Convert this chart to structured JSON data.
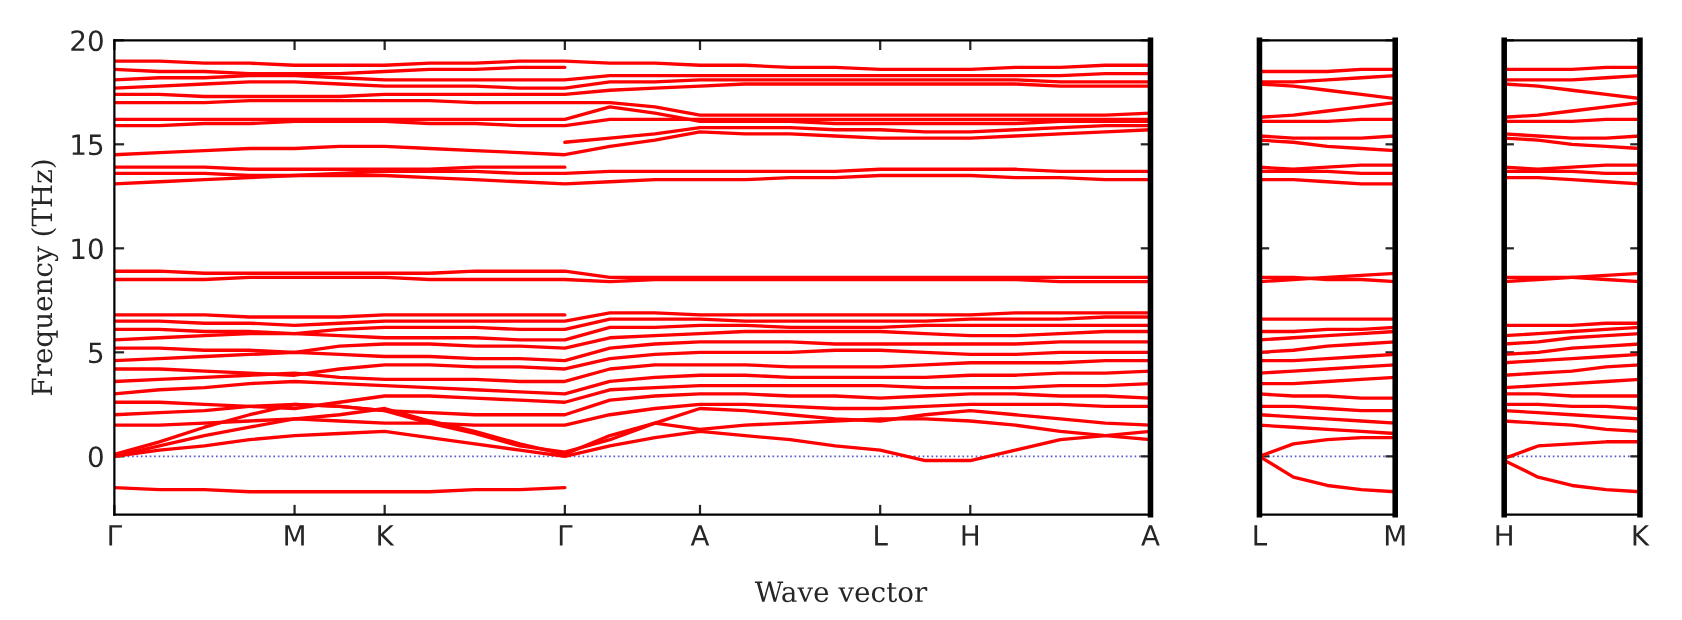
{
  "chart_data": [
    {
      "type": "line",
      "ylabel": "Frequency (THz)",
      "xlabel": "Wave vector",
      "ylim": [
        -2.8,
        20
      ],
      "categories": [
        "Γ",
        null,
        null,
        null,
        "M",
        null,
        "K",
        null,
        null,
        null,
        "Γ",
        null,
        null,
        "A",
        null,
        null,
        null,
        "L",
        null,
        "H",
        null,
        null,
        null,
        "A"
      ],
      "yticks": [
        0,
        5,
        10,
        15,
        20
      ],
      "grid": false,
      "legend": false,
      "marker": "none",
      "line_style": "solid",
      "ref_lines": [
        {
          "axis": "y",
          "value": 0,
          "color": "#5a5ad0",
          "line_style": "dotted"
        }
      ],
      "series": [
        {
          "color": "#ff0000",
          "values": [
            -1.5,
            -1.6,
            -1.6,
            -1.7,
            -1.7,
            -1.7,
            -1.7,
            -1.7,
            -1.6,
            -1.6,
            -1.5,
            null,
            null,
            null,
            null,
            null,
            null,
            null,
            null,
            null,
            null,
            null,
            null,
            null
          ]
        },
        {
          "color": "#ff0000",
          "values": [
            0,
            0.3,
            0.5,
            0.8,
            1.0,
            1.1,
            1.2,
            0.9,
            0.6,
            0.3,
            0,
            0.5,
            0.9,
            1.2,
            1.0,
            0.8,
            0.5,
            0.3,
            -0.2,
            -0.2,
            0.3,
            0.8,
            1.0,
            1.2
          ]
        },
        {
          "color": "#ff0000",
          "values": [
            0,
            0.5,
            1.0,
            1.4,
            1.8,
            2.0,
            2.3,
            1.7,
            1.2,
            0.6,
            0.1,
            1.0,
            1.6,
            1.3,
            1.5,
            1.6,
            1.7,
            1.8,
            1.8,
            1.7,
            1.5,
            1.2,
            1.0,
            0.8
          ]
        },
        {
          "color": "#ff0000",
          "values": [
            0.1,
            0.7,
            1.4,
            2.0,
            2.5,
            2.4,
            2.2,
            1.6,
            1.1,
            0.5,
            0.2,
            0.8,
            1.6,
            2.3,
            2.2,
            2.0,
            1.8,
            1.7,
            2.0,
            2.2,
            2.0,
            1.8,
            1.6,
            1.5
          ]
        },
        {
          "color": "#ff0000",
          "values": [
            1.5,
            1.5,
            1.6,
            1.7,
            1.8,
            1.7,
            1.6,
            1.6,
            1.5,
            1.5,
            1.5,
            2.0,
            2.3,
            2.5,
            2.5,
            2.4,
            2.3,
            2.3,
            2.4,
            2.5,
            2.5,
            2.5,
            2.4,
            2.4
          ]
        },
        {
          "color": "#ff0000",
          "values": [
            2.0,
            2.1,
            2.2,
            2.4,
            2.5,
            2.4,
            2.2,
            2.1,
            2.0,
            2.0,
            2.0,
            2.7,
            2.9,
            3.0,
            3.0,
            2.9,
            2.9,
            2.8,
            2.9,
            3.0,
            3.0,
            2.9,
            2.9,
            2.8
          ]
        },
        {
          "color": "#ff0000",
          "values": [
            2.6,
            2.6,
            2.5,
            2.4,
            2.3,
            2.6,
            2.9,
            2.9,
            2.8,
            2.7,
            2.6,
            3.2,
            3.3,
            3.4,
            3.4,
            3.4,
            3.4,
            3.4,
            3.3,
            3.3,
            3.3,
            3.4,
            3.4,
            3.5
          ]
        },
        {
          "color": "#ff0000",
          "values": [
            3.0,
            3.2,
            3.3,
            3.5,
            3.6,
            3.5,
            3.4,
            3.3,
            3.2,
            3.1,
            3.0,
            3.6,
            3.8,
            3.9,
            3.9,
            3.8,
            3.8,
            3.8,
            3.8,
            3.9,
            3.9,
            4.0,
            4.0,
            4.1
          ]
        },
        {
          "color": "#ff0000",
          "values": [
            3.6,
            3.7,
            3.8,
            3.9,
            4.0,
            3.8,
            3.7,
            3.7,
            3.7,
            3.6,
            3.6,
            4.2,
            4.4,
            4.4,
            4.4,
            4.3,
            4.3,
            4.3,
            4.4,
            4.5,
            4.5,
            4.5,
            4.6,
            4.6
          ]
        },
        {
          "color": "#ff0000",
          "values": [
            4.2,
            4.2,
            4.1,
            4.0,
            3.9,
            4.2,
            4.4,
            4.4,
            4.3,
            4.3,
            4.2,
            4.7,
            4.9,
            5.0,
            5.0,
            5.0,
            5.1,
            5.1,
            5.0,
            4.9,
            4.9,
            5.0,
            5.0,
            5.0
          ]
        },
        {
          "color": "#ff0000",
          "values": [
            4.6,
            4.7,
            4.8,
            4.9,
            5.0,
            4.9,
            4.8,
            4.8,
            4.7,
            4.7,
            4.6,
            5.2,
            5.4,
            5.5,
            5.5,
            5.5,
            5.4,
            5.4,
            5.4,
            5.4,
            5.4,
            5.5,
            5.5,
            5.5
          ]
        },
        {
          "color": "#ff0000",
          "values": [
            5.2,
            5.2,
            5.1,
            5.1,
            5.0,
            5.3,
            5.4,
            5.4,
            5.3,
            5.3,
            5.2,
            5.7,
            5.8,
            5.9,
            6.0,
            6.0,
            6.0,
            6.0,
            5.9,
            5.8,
            5.8,
            5.9,
            6.0,
            6.0
          ]
        },
        {
          "color": "#ff0000",
          "values": [
            5.6,
            5.7,
            5.8,
            5.9,
            5.9,
            5.8,
            5.7,
            5.7,
            5.7,
            5.6,
            5.6,
            6.2,
            6.2,
            6.3,
            6.3,
            6.2,
            6.2,
            6.2,
            6.3,
            6.3,
            6.3,
            6.3,
            6.3,
            6.3
          ]
        },
        {
          "color": "#ff0000",
          "values": [
            6.1,
            6.1,
            6.0,
            6.0,
            5.9,
            6.1,
            6.2,
            6.2,
            6.2,
            6.1,
            6.1,
            6.6,
            6.6,
            6.6,
            6.5,
            6.5,
            6.5,
            6.5,
            6.5,
            6.6,
            6.6,
            6.6,
            6.7,
            6.7
          ]
        },
        {
          "color": "#ff0000",
          "values": [
            6.5,
            6.5,
            6.4,
            6.4,
            6.3,
            6.4,
            6.5,
            6.5,
            6.5,
            6.5,
            6.5,
            6.9,
            6.9,
            6.8,
            6.8,
            6.8,
            6.8,
            6.8,
            6.8,
            6.8,
            6.9,
            6.9,
            6.9,
            6.9
          ]
        },
        {
          "color": "#ff0000",
          "values": [
            6.8,
            6.8,
            6.8,
            6.7,
            6.7,
            6.7,
            6.8,
            6.8,
            6.8,
            6.8,
            6.8,
            null,
            null,
            null,
            null,
            null,
            null,
            null,
            null,
            null,
            null,
            null,
            null,
            null
          ]
        },
        {
          "color": "#ff0000",
          "values": [
            8.5,
            8.5,
            8.5,
            8.6,
            8.6,
            8.6,
            8.6,
            8.5,
            8.5,
            8.5,
            8.5,
            8.4,
            8.5,
            8.5,
            8.5,
            8.5,
            8.5,
            8.5,
            8.5,
            8.5,
            8.5,
            8.4,
            8.4,
            8.4
          ]
        },
        {
          "color": "#ff0000",
          "values": [
            8.9,
            8.9,
            8.8,
            8.8,
            8.8,
            8.8,
            8.8,
            8.8,
            8.9,
            8.9,
            8.9,
            8.6,
            8.6,
            8.6,
            8.6,
            8.6,
            8.6,
            8.6,
            8.6,
            8.6,
            8.6,
            8.6,
            8.6,
            8.6
          ]
        },
        {
          "color": "#ff0000",
          "values": [
            13.1,
            13.2,
            13.3,
            13.4,
            13.5,
            13.5,
            13.5,
            13.4,
            13.3,
            13.2,
            13.1,
            13.2,
            13.3,
            13.3,
            13.3,
            13.4,
            13.4,
            13.5,
            13.5,
            13.5,
            13.4,
            13.4,
            13.3,
            13.3
          ]
        },
        {
          "color": "#ff0000",
          "values": [
            13.6,
            13.6,
            13.6,
            13.5,
            13.5,
            13.6,
            13.7,
            13.7,
            13.7,
            13.6,
            13.6,
            13.7,
            13.7,
            13.7,
            13.7,
            13.7,
            13.7,
            13.8,
            13.8,
            13.8,
            13.8,
            13.7,
            13.7,
            13.7
          ]
        },
        {
          "color": "#ff0000",
          "values": [
            13.9,
            13.9,
            13.9,
            13.8,
            13.8,
            13.8,
            13.8,
            13.8,
            13.9,
            13.9,
            13.9,
            null,
            null,
            null,
            null,
            null,
            null,
            null,
            null,
            null,
            null,
            null,
            null,
            null
          ]
        },
        {
          "color": "#ff0000",
          "values": [
            14.5,
            14.6,
            14.7,
            14.8,
            14.8,
            14.9,
            14.9,
            14.8,
            14.7,
            14.6,
            14.5,
            14.9,
            15.2,
            15.6,
            15.5,
            15.5,
            15.4,
            15.3,
            15.3,
            15.3,
            15.4,
            15.5,
            15.6,
            15.7
          ]
        },
        {
          "color": "#ff0000",
          "values": [
            null,
            null,
            null,
            null,
            null,
            null,
            null,
            null,
            null,
            null,
            15.1,
            15.3,
            15.5,
            15.8,
            15.8,
            15.8,
            15.7,
            15.7,
            15.6,
            15.6,
            15.7,
            15.8,
            15.9,
            15.9
          ]
        },
        {
          "color": "#ff0000",
          "values": [
            15.9,
            15.9,
            16.0,
            16.0,
            16.1,
            16.1,
            16.1,
            16.0,
            16.0,
            15.9,
            15.9,
            16.2,
            16.2,
            16.2,
            16.2,
            16.2,
            16.2,
            16.2,
            16.2,
            16.2,
            16.2,
            16.2,
            16.2,
            16.2
          ]
        },
        {
          "color": "#ff0000",
          "values": [
            16.2,
            16.2,
            16.2,
            16.2,
            16.2,
            16.2,
            16.2,
            16.2,
            16.2,
            16.2,
            16.2,
            16.8,
            16.5,
            16.1,
            16.1,
            16.1,
            16.0,
            16.0,
            16.0,
            16.0,
            16.0,
            16.1,
            16.1,
            16.1
          ]
        },
        {
          "color": "#ff0000",
          "values": [
            17.0,
            17.0,
            17.0,
            17.1,
            17.1,
            17.1,
            17.1,
            17.1,
            17.0,
            17.0,
            17.0,
            17.0,
            16.8,
            16.4,
            16.4,
            16.4,
            16.4,
            16.4,
            16.4,
            16.4,
            16.4,
            16.4,
            16.4,
            16.5
          ]
        },
        {
          "color": "#ff0000",
          "values": [
            17.4,
            17.4,
            17.3,
            17.3,
            17.3,
            17.3,
            17.4,
            17.4,
            17.4,
            17.4,
            17.4,
            17.6,
            17.7,
            17.8,
            17.9,
            17.9,
            17.9,
            17.9,
            17.9,
            17.9,
            17.9,
            17.8,
            17.8,
            17.8
          ]
        },
        {
          "color": "#ff0000",
          "values": [
            17.7,
            17.8,
            17.9,
            18.0,
            18.0,
            17.9,
            17.8,
            17.8,
            17.8,
            17.7,
            17.7,
            18.0,
            18.0,
            18.1,
            18.1,
            18.1,
            18.1,
            18.1,
            18.1,
            18.1,
            18.1,
            18.0,
            18.0,
            18.0
          ]
        },
        {
          "color": "#ff0000",
          "values": [
            18.1,
            18.2,
            18.2,
            18.3,
            18.3,
            18.2,
            18.1,
            18.1,
            18.1,
            18.1,
            18.1,
            18.3,
            18.3,
            18.3,
            18.3,
            18.3,
            18.3,
            18.3,
            18.3,
            18.3,
            18.3,
            18.3,
            18.4,
            18.4
          ]
        },
        {
          "color": "#ff0000",
          "values": [
            18.6,
            18.5,
            18.5,
            18.4,
            18.4,
            18.4,
            18.5,
            18.6,
            18.6,
            18.7,
            18.7,
            null,
            null,
            null,
            null,
            null,
            null,
            null,
            null,
            null,
            null,
            null,
            null,
            null
          ]
        },
        {
          "color": "#ff0000",
          "values": [
            19.0,
            19.0,
            18.9,
            18.9,
            18.8,
            18.8,
            18.8,
            18.9,
            18.9,
            19.0,
            19.0,
            18.9,
            18.9,
            18.8,
            18.8,
            18.7,
            18.7,
            18.6,
            18.6,
            18.6,
            18.7,
            18.7,
            18.8,
            18.8
          ]
        }
      ]
    },
    {
      "type": "line",
      "ylim": [
        -2.8,
        20
      ],
      "categories": [
        "L",
        null,
        null,
        null,
        "M"
      ],
      "yticks": [
        0,
        5,
        10,
        15,
        20
      ],
      "tick_labels": "x",
      "grid": false,
      "legend": false,
      "marker": "none",
      "line_style": "solid",
      "ref_lines": [
        {
          "axis": "y",
          "value": 0,
          "color": "#5a5ad0",
          "line_style": "dotted"
        }
      ],
      "series": [
        {
          "color": "#ff0000",
          "values": [
            0,
            -1.0,
            -1.4,
            -1.6,
            -1.7
          ]
        },
        {
          "color": "#ff0000",
          "values": [
            0,
            0.6,
            0.8,
            0.9,
            0.9
          ]
        },
        {
          "color": "#ff0000",
          "values": [
            1.5,
            1.4,
            1.3,
            1.2,
            1.1
          ]
        },
        {
          "color": "#ff0000",
          "values": [
            2.0,
            1.9,
            1.8,
            1.7,
            1.6
          ]
        },
        {
          "color": "#ff0000",
          "values": [
            2.4,
            2.4,
            2.3,
            2.2,
            2.2
          ]
        },
        {
          "color": "#ff0000",
          "values": [
            3.0,
            2.9,
            2.9,
            2.8,
            2.8
          ]
        },
        {
          "color": "#ff0000",
          "values": [
            3.5,
            3.5,
            3.6,
            3.7,
            3.8
          ]
        },
        {
          "color": "#ff0000",
          "values": [
            4.0,
            4.1,
            4.2,
            4.3,
            4.4
          ]
        },
        {
          "color": "#ff0000",
          "values": [
            4.6,
            4.6,
            4.7,
            4.8,
            4.9
          ]
        },
        {
          "color": "#ff0000",
          "values": [
            5.0,
            5.1,
            5.3,
            5.4,
            5.5
          ]
        },
        {
          "color": "#ff0000",
          "values": [
            5.6,
            5.7,
            5.8,
            5.9,
            6.0
          ]
        },
        {
          "color": "#ff0000",
          "values": [
            6.0,
            6.0,
            6.1,
            6.1,
            6.2
          ]
        },
        {
          "color": "#ff0000",
          "values": [
            6.6,
            6.6,
            6.6,
            6.6,
            6.6
          ]
        },
        {
          "color": "#ff0000",
          "values": [
            8.4,
            8.5,
            8.6,
            8.7,
            8.8
          ]
        },
        {
          "color": "#ff0000",
          "values": [
            8.6,
            8.6,
            8.5,
            8.5,
            8.4
          ]
        },
        {
          "color": "#ff0000",
          "values": [
            13.3,
            13.3,
            13.2,
            13.1,
            13.1
          ]
        },
        {
          "color": "#ff0000",
          "values": [
            13.7,
            13.7,
            13.7,
            13.6,
            13.6
          ]
        },
        {
          "color": "#ff0000",
          "values": [
            13.9,
            13.8,
            13.9,
            14.0,
            14.0
          ]
        },
        {
          "color": "#ff0000",
          "values": [
            15.2,
            15.1,
            14.9,
            14.8,
            14.7
          ]
        },
        {
          "color": "#ff0000",
          "values": [
            15.4,
            15.3,
            15.3,
            15.3,
            15.4
          ]
        },
        {
          "color": "#ff0000",
          "values": [
            16.1,
            16.1,
            16.1,
            16.2,
            16.2
          ]
        },
        {
          "color": "#ff0000",
          "values": [
            16.3,
            16.4,
            16.6,
            16.8,
            17.0
          ]
        },
        {
          "color": "#ff0000",
          "values": [
            17.9,
            17.8,
            17.6,
            17.4,
            17.2
          ]
        },
        {
          "color": "#ff0000",
          "values": [
            18.0,
            18.0,
            18.1,
            18.2,
            18.3
          ]
        },
        {
          "color": "#ff0000",
          "values": [
            18.5,
            18.5,
            18.5,
            18.6,
            18.6
          ]
        }
      ]
    },
    {
      "type": "line",
      "ylim": [
        -2.8,
        20
      ],
      "categories": [
        "H",
        null,
        null,
        null,
        "K"
      ],
      "yticks": [
        0,
        5,
        10,
        15,
        20
      ],
      "tick_labels": "x",
      "grid": false,
      "legend": false,
      "marker": "none",
      "line_style": "solid",
      "ref_lines": [
        {
          "axis": "y",
          "value": 0,
          "color": "#5a5ad0",
          "line_style": "dotted"
        }
      ],
      "series": [
        {
          "color": "#ff0000",
          "values": [
            -0.2,
            -1.0,
            -1.4,
            -1.6,
            -1.7
          ]
        },
        {
          "color": "#ff0000",
          "values": [
            -0.1,
            0.5,
            0.6,
            0.7,
            0.7
          ]
        },
        {
          "color": "#ff0000",
          "values": [
            1.7,
            1.6,
            1.5,
            1.3,
            1.2
          ]
        },
        {
          "color": "#ff0000",
          "values": [
            2.2,
            2.1,
            2.0,
            1.9,
            1.8
          ]
        },
        {
          "color": "#ff0000",
          "values": [
            2.5,
            2.5,
            2.4,
            2.4,
            2.3
          ]
        },
        {
          "color": "#ff0000",
          "values": [
            3.0,
            3.0,
            2.9,
            2.9,
            2.9
          ]
        },
        {
          "color": "#ff0000",
          "values": [
            3.3,
            3.4,
            3.5,
            3.6,
            3.7
          ]
        },
        {
          "color": "#ff0000",
          "values": [
            3.9,
            4.0,
            4.1,
            4.3,
            4.4
          ]
        },
        {
          "color": "#ff0000",
          "values": [
            4.5,
            4.6,
            4.7,
            4.8,
            4.9
          ]
        },
        {
          "color": "#ff0000",
          "values": [
            4.9,
            5.0,
            5.2,
            5.3,
            5.4
          ]
        },
        {
          "color": "#ff0000",
          "values": [
            5.4,
            5.5,
            5.7,
            5.8,
            5.9
          ]
        },
        {
          "color": "#ff0000",
          "values": [
            5.8,
            5.9,
            6.0,
            6.1,
            6.2
          ]
        },
        {
          "color": "#ff0000",
          "values": [
            6.3,
            6.3,
            6.3,
            6.4,
            6.4
          ]
        },
        {
          "color": "#ff0000",
          "values": [
            8.4,
            8.5,
            8.6,
            8.7,
            8.8
          ]
        },
        {
          "color": "#ff0000",
          "values": [
            8.6,
            8.6,
            8.6,
            8.5,
            8.4
          ]
        },
        {
          "color": "#ff0000",
          "values": [
            13.4,
            13.4,
            13.3,
            13.2,
            13.1
          ]
        },
        {
          "color": "#ff0000",
          "values": [
            13.7,
            13.7,
            13.7,
            13.6,
            13.6
          ]
        },
        {
          "color": "#ff0000",
          "values": [
            13.9,
            13.8,
            13.9,
            14.0,
            14.0
          ]
        },
        {
          "color": "#ff0000",
          "values": [
            15.3,
            15.2,
            15.0,
            14.9,
            14.8
          ]
        },
        {
          "color": "#ff0000",
          "values": [
            15.5,
            15.4,
            15.3,
            15.3,
            15.4
          ]
        },
        {
          "color": "#ff0000",
          "values": [
            16.1,
            16.1,
            16.1,
            16.2,
            16.2
          ]
        },
        {
          "color": "#ff0000",
          "values": [
            16.3,
            16.4,
            16.6,
            16.8,
            17.0
          ]
        },
        {
          "color": "#ff0000",
          "values": [
            17.9,
            17.8,
            17.6,
            17.4,
            17.2
          ]
        },
        {
          "color": "#ff0000",
          "values": [
            18.1,
            18.1,
            18.1,
            18.2,
            18.3
          ]
        },
        {
          "color": "#ff0000",
          "values": [
            18.6,
            18.6,
            18.6,
            18.7,
            18.7
          ]
        }
      ]
    }
  ]
}
